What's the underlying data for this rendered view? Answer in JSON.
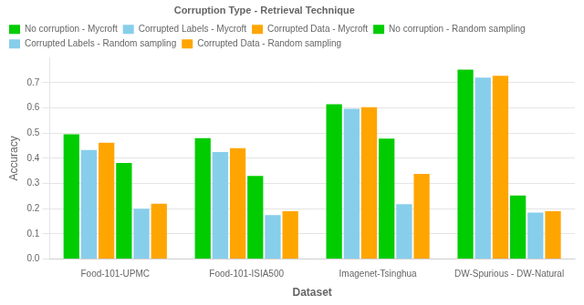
{
  "chart_data": {
    "type": "bar",
    "categories": [
      "Food-101-UPMC",
      "Food-101-ISIA500",
      "Imagenet-Tsinghua",
      "DW-Spurious - DW-Natural"
    ],
    "series": [
      {
        "name": "No corruption - Mycroft",
        "color": "#00cc00",
        "values": [
          0.495,
          0.48,
          0.615,
          0.752
        ]
      },
      {
        "name": "Corrupted Labels - Mycroft",
        "color": "#87ceeb",
        "values": [
          0.433,
          0.425,
          0.597,
          0.72
        ]
      },
      {
        "name": "Corrupted Data - Mycroft",
        "color": "#ffa500",
        "values": [
          0.462,
          0.44,
          0.603,
          0.728
        ]
      },
      {
        "name": "No corruption - Random sampling",
        "color": "#00cc00",
        "values": [
          0.382,
          0.33,
          0.478,
          0.252
        ]
      },
      {
        "name": "Corrupted Labels - Random sampling",
        "color": "#87ceeb",
        "values": [
          0.2,
          0.175,
          0.218,
          0.185
        ]
      },
      {
        "name": "Corrupted Data - Random sampling",
        "color": "#ffa500",
        "values": [
          0.22,
          0.19,
          0.338,
          0.19
        ]
      }
    ],
    "xlabel": "Dataset",
    "ylabel": "Accuracy",
    "legend_title": "Corruption Type - Retrieval Technique",
    "legend": "upper left",
    "ylim": [
      0.0,
      0.8
    ],
    "yticks": [
      {
        "value": 0.0,
        "label": "0.0"
      },
      0.1,
      0.2,
      0.3,
      0.4,
      0.5,
      0.6,
      0.7
    ],
    "grid": true
  }
}
